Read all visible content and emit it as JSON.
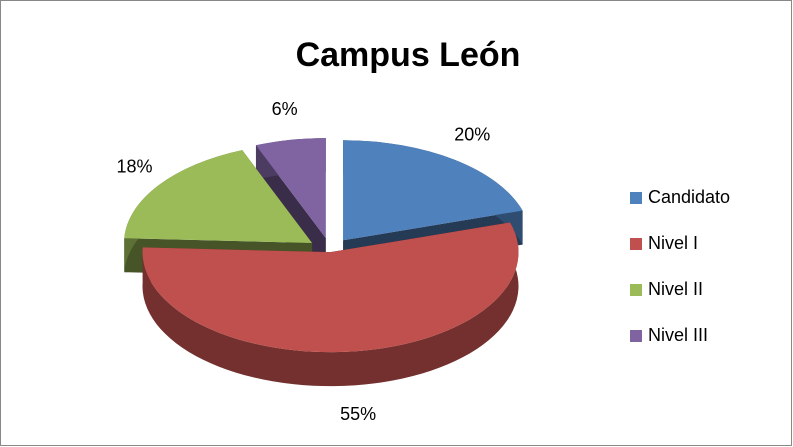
{
  "chart_data": {
    "type": "pie",
    "title": "Campus León",
    "categories": [
      "Candidato",
      "Nivel I",
      "Nivel II",
      "Nivel III"
    ],
    "values": [
      20,
      55,
      18,
      6
    ],
    "value_labels": [
      "20%",
      "55%",
      "18%",
      "6%"
    ],
    "colors": [
      "#4f81bd",
      "#c0504d",
      "#9bbb59",
      "#8064a2"
    ]
  }
}
